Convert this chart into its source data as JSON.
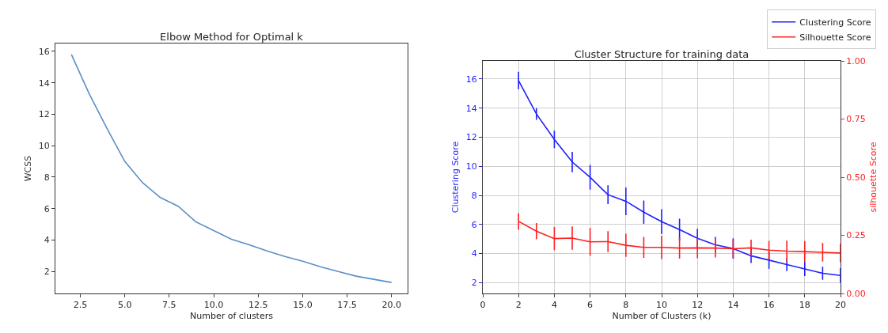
{
  "chart_data": [
    {
      "type": "line",
      "title": "Elbow Method for Optimal k",
      "xlabel": "Number of clusters",
      "ylabel": "WCSS",
      "x": [
        2,
        3,
        4,
        5,
        6,
        7,
        8,
        9,
        10,
        11,
        12,
        13,
        14,
        15,
        16,
        17,
        18,
        19,
        20
      ],
      "series": [
        {
          "color": "#5b8fc7",
          "values": [
            15.8,
            13.3,
            11.1,
            9.0,
            7.65,
            6.7,
            6.15,
            5.15,
            4.6,
            4.05,
            3.7,
            3.3,
            2.95,
            2.65,
            2.3,
            2.0,
            1.7,
            1.5,
            1.3
          ]
        }
      ],
      "xlim": [
        1.1,
        20.9
      ],
      "ylim": [
        0.6,
        16.5
      ],
      "xticks": [
        {
          "value": 2.5,
          "label": "2.5"
        },
        {
          "value": 5,
          "label": "5.0"
        },
        {
          "value": 7.5,
          "label": "7.5"
        },
        {
          "value": 10,
          "label": "10.0"
        },
        {
          "value": 12.5,
          "label": "12.5"
        },
        {
          "value": 15,
          "label": "15.0"
        },
        {
          "value": 17.5,
          "label": "17.5"
        },
        {
          "value": 20,
          "label": "20.0"
        }
      ],
      "yticks": [
        2,
        4,
        6,
        8,
        10,
        12,
        14,
        16
      ],
      "grid": false,
      "line_style": "solid",
      "marker": "none"
    },
    {
      "type": "line",
      "title": "Cluster Structure for training data",
      "xlabel": "Number of Clusters (k)",
      "ylabel": "Clustering Score",
      "y2label": "silhouette Score",
      "x": [
        2,
        3,
        4,
        5,
        6,
        7,
        8,
        9,
        10,
        11,
        12,
        13,
        14,
        15,
        16,
        17,
        18,
        19,
        20
      ],
      "series": [
        {
          "name": "Clustering Score",
          "color": "#1f1fff",
          "values": [
            15.9,
            13.6,
            11.85,
            10.3,
            9.25,
            8.05,
            7.6,
            6.85,
            6.2,
            5.65,
            5.05,
            4.6,
            4.35,
            3.85,
            3.55,
            3.25,
            2.95,
            2.65,
            2.5
          ],
          "errors": [
            0.6,
            0.4,
            0.6,
            0.7,
            0.85,
            0.65,
            0.95,
            0.8,
            0.85,
            0.75,
            0.65,
            0.55,
            0.7,
            0.5,
            0.6,
            0.45,
            0.5,
            0.45,
            0.5
          ]
        },
        {
          "name": "Silhouette Score",
          "color": "#ff1f1f",
          "axis": "y2",
          "values": [
            0.31,
            0.268,
            0.236,
            0.238,
            0.222,
            0.223,
            0.207,
            0.198,
            0.198,
            0.195,
            0.196,
            0.195,
            0.192,
            0.196,
            0.186,
            0.182,
            0.18,
            0.177,
            0.174
          ],
          "errors": [
            0.035,
            0.035,
            0.05,
            0.05,
            0.06,
            0.045,
            0.05,
            0.045,
            0.05,
            0.045,
            0.045,
            0.04,
            0.04,
            0.035,
            0.04,
            0.045,
            0.045,
            0.04,
            0.04
          ]
        }
      ],
      "xlim": [
        0,
        20
      ],
      "ylim": [
        1.26,
        17.25
      ],
      "y2lim": [
        0,
        1
      ],
      "xticks": [
        0,
        2,
        4,
        6,
        8,
        10,
        12,
        14,
        16,
        18,
        20
      ],
      "yticks": [
        2,
        4,
        6,
        8,
        10,
        12,
        14,
        16
      ],
      "y2ticks": [
        {
          "value": 0,
          "label": "0.00"
        },
        {
          "value": 0.25,
          "label": "0.25"
        },
        {
          "value": 0.5,
          "label": "0.50"
        },
        {
          "value": 0.75,
          "label": "0.75"
        },
        {
          "value": 1,
          "label": "1.00"
        }
      ],
      "grid": true,
      "legend": "top right",
      "line_style": "solid",
      "marker": "none"
    }
  ]
}
